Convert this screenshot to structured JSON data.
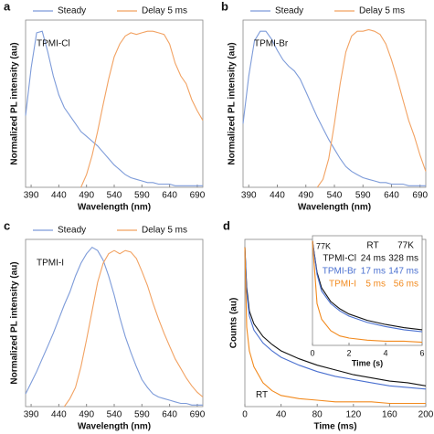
{
  "chart_data": [
    {
      "type": "line",
      "panel": "a",
      "xlabel": "Wavelength (nm)",
      "ylabel": "Normalized PL intensity (au)",
      "annotation": "TPMI-Cl",
      "x": [
        380,
        390,
        400,
        410,
        420,
        430,
        440,
        450,
        460,
        470,
        480,
        490,
        500,
        510,
        520,
        530,
        540,
        550,
        560,
        570,
        580,
        590,
        600,
        610,
        620,
        630,
        640,
        650,
        660,
        670,
        680,
        690,
        700
      ],
      "xlim": [
        380,
        700
      ],
      "xticks": [
        390,
        440,
        490,
        540,
        590,
        640,
        690
      ],
      "ylim": [
        0,
        1.05
      ],
      "series": [
        {
          "name": "Steady",
          "color": "#7d9bd9",
          "values": [
            0.45,
            0.75,
            0.97,
            0.98,
            0.85,
            0.7,
            0.58,
            0.5,
            0.45,
            0.4,
            0.35,
            0.32,
            0.29,
            0.26,
            0.22,
            0.18,
            0.14,
            0.11,
            0.08,
            0.06,
            0.05,
            0.04,
            0.03,
            0.03,
            0.02,
            0.02,
            0.02,
            0.01,
            0.01,
            0.01,
            0.01,
            0.01,
            0.01
          ]
        },
        {
          "name": "Delay 5 ms",
          "color": "#f2a262",
          "values": [
            null,
            null,
            null,
            null,
            null,
            null,
            null,
            null,
            null,
            null,
            0.0,
            0.08,
            0.2,
            0.35,
            0.52,
            0.68,
            0.82,
            0.9,
            0.95,
            0.97,
            0.96,
            0.97,
            0.98,
            0.98,
            0.97,
            0.96,
            0.9,
            0.78,
            0.7,
            0.65,
            0.55,
            0.48,
            0.42
          ]
        }
      ]
    },
    {
      "type": "line",
      "panel": "b",
      "xlabel": "Wavelength (nm)",
      "ylabel": "Normalized PL intensity (au)",
      "annotation": "TPMI-Br",
      "x": [
        380,
        390,
        400,
        410,
        420,
        430,
        440,
        450,
        460,
        470,
        480,
        490,
        500,
        510,
        520,
        530,
        540,
        550,
        560,
        570,
        580,
        590,
        600,
        610,
        620,
        630,
        640,
        650,
        660,
        670,
        680,
        690,
        700
      ],
      "xlim": [
        380,
        700
      ],
      "xticks": [
        390,
        440,
        490,
        540,
        590,
        640,
        690
      ],
      "ylim": [
        0,
        1.05
      ],
      "series": [
        {
          "name": "Steady",
          "color": "#7d9bd9",
          "values": [
            0.4,
            0.7,
            0.92,
            0.98,
            0.98,
            0.93,
            0.86,
            0.8,
            0.76,
            0.73,
            0.68,
            0.6,
            0.52,
            0.44,
            0.37,
            0.3,
            0.24,
            0.18,
            0.13,
            0.1,
            0.08,
            0.06,
            0.05,
            0.04,
            0.03,
            0.03,
            0.02,
            0.02,
            0.02,
            0.01,
            0.01,
            0.01,
            0.01
          ]
        },
        {
          "name": "Delay 5 ms",
          "color": "#f2a262",
          "values": [
            null,
            null,
            null,
            null,
            null,
            null,
            null,
            null,
            null,
            null,
            null,
            null,
            null,
            0.0,
            0.05,
            0.18,
            0.4,
            0.65,
            0.85,
            0.95,
            0.98,
            0.98,
            0.99,
            0.98,
            0.96,
            0.9,
            0.8,
            0.68,
            0.55,
            0.42,
            0.32,
            0.2,
            0.1
          ]
        }
      ]
    },
    {
      "type": "line",
      "panel": "c",
      "xlabel": "Wavelength (nm)",
      "ylabel": "Normalized PL intensity (au)",
      "annotation": "TPMI-I",
      "x": [
        380,
        390,
        400,
        410,
        420,
        430,
        440,
        450,
        460,
        470,
        480,
        490,
        500,
        510,
        520,
        530,
        540,
        550,
        560,
        570,
        580,
        590,
        600,
        610,
        620,
        630,
        640,
        650,
        660,
        670,
        680,
        690,
        700
      ],
      "xlim": [
        380,
        700
      ],
      "xticks": [
        390,
        440,
        490,
        540,
        590,
        640,
        690
      ],
      "ylim": [
        0,
        1.05
      ],
      "series": [
        {
          "name": "Steady",
          "color": "#7d9bd9",
          "values": [
            0.08,
            0.15,
            0.22,
            0.3,
            0.38,
            0.46,
            0.55,
            0.64,
            0.72,
            0.82,
            0.9,
            0.96,
            1.0,
            0.98,
            0.92,
            0.82,
            0.7,
            0.56,
            0.44,
            0.34,
            0.25,
            0.17,
            0.12,
            0.08,
            0.06,
            0.05,
            0.04,
            0.03,
            0.02,
            0.02,
            0.01,
            0.01,
            0.01
          ]
        },
        {
          "name": "Delay 5 ms",
          "color": "#f2a262",
          "values": [
            null,
            null,
            null,
            null,
            null,
            null,
            null,
            0.0,
            0.05,
            0.12,
            0.25,
            0.42,
            0.6,
            0.78,
            0.9,
            0.96,
            0.98,
            0.96,
            0.98,
            0.97,
            0.93,
            0.85,
            0.76,
            0.65,
            0.55,
            0.46,
            0.38,
            0.3,
            0.24,
            0.18,
            0.13,
            0.09,
            0.06
          ]
        }
      ]
    },
    {
      "type": "line",
      "panel": "d",
      "xlabel": "Time (ms)",
      "ylabel": "Counts (au)",
      "annotation": "RT",
      "x": [
        0,
        2,
        5,
        10,
        20,
        30,
        40,
        60,
        80,
        100,
        120,
        140,
        160,
        180,
        200
      ],
      "xlim": [
        0,
        200
      ],
      "xticks": [
        0,
        40,
        80,
        120,
        160,
        200
      ],
      "ylim": [
        0,
        1.05
      ],
      "series": [
        {
          "name": "TPMI-Cl",
          "color": "#111111",
          "values": [
            1,
            0.75,
            0.6,
            0.52,
            0.44,
            0.39,
            0.35,
            0.3,
            0.26,
            0.23,
            0.2,
            0.18,
            0.16,
            0.15,
            0.13
          ]
        },
        {
          "name": "TPMI-Br",
          "color": "#4a70d0",
          "values": [
            1,
            0.72,
            0.57,
            0.48,
            0.4,
            0.35,
            0.31,
            0.26,
            0.22,
            0.19,
            0.17,
            0.15,
            0.13,
            0.12,
            0.11
          ]
        },
        {
          "name": "TPMI-I",
          "color": "#f28a1e",
          "values": [
            1,
            0.5,
            0.35,
            0.25,
            0.15,
            0.1,
            0.07,
            0.05,
            0.04,
            0.03,
            0.03,
            0.03,
            0.02,
            0.02,
            0.02
          ]
        }
      ],
      "table": {
        "columns": [
          "RT",
          "77K"
        ],
        "rows": [
          [
            "24 ms",
            "328 ms"
          ],
          [
            "17 ms",
            "147 ms"
          ],
          [
            "5 ms",
            "56 ms"
          ]
        ]
      }
    },
    {
      "type": "line",
      "xlabel": "Time (s)",
      "annotation": "77K",
      "x": [
        0,
        0.25,
        0.5,
        1,
        1.5,
        2,
        3,
        4,
        5,
        6
      ],
      "xlim": [
        0,
        6
      ],
      "xticks": [
        0,
        2,
        4,
        6
      ],
      "ylim": [
        0,
        1.05
      ],
      "series": [
        {
          "color": "#111111",
          "values": [
            1,
            0.7,
            0.55,
            0.42,
            0.35,
            0.3,
            0.24,
            0.2,
            0.17,
            0.15
          ]
        },
        {
          "color": "#4a70d0",
          "values": [
            1,
            0.68,
            0.52,
            0.4,
            0.33,
            0.28,
            0.22,
            0.18,
            0.15,
            0.13
          ]
        },
        {
          "color": "#f28a1e",
          "values": [
            1,
            0.4,
            0.25,
            0.14,
            0.09,
            0.07,
            0.05,
            0.04,
            0.04,
            0.03
          ]
        }
      ]
    }
  ]
}
